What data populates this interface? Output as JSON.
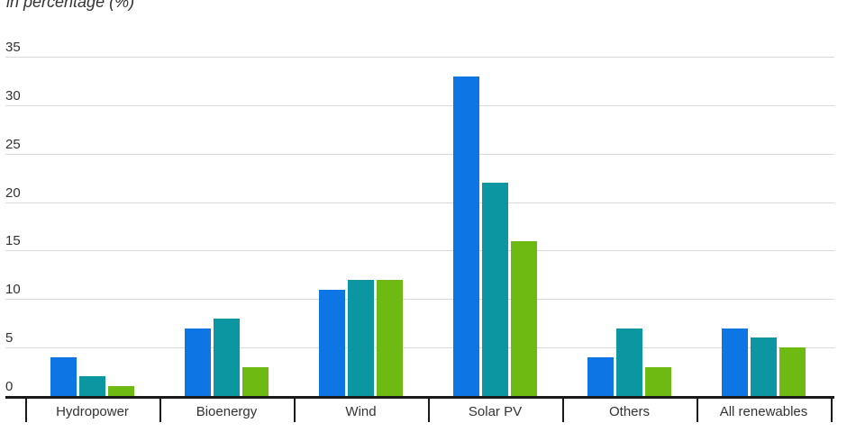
{
  "chart_data": {
    "type": "bar",
    "subtitle": "in percentage (%)",
    "categories": [
      "Hydropower",
      "Bioenergy",
      "Wind",
      "Solar PV",
      "Others",
      "All renewables"
    ],
    "series": [
      {
        "name": "series-blue",
        "color": "#0e76e4",
        "values": [
          4,
          7,
          11,
          33,
          4,
          7
        ]
      },
      {
        "name": "series-teal",
        "color": "#0b96a2",
        "values": [
          2,
          8,
          12,
          22,
          7,
          6
        ]
      },
      {
        "name": "series-green",
        "color": "#6fba12",
        "values": [
          1,
          3,
          12,
          16,
          3,
          5
        ]
      }
    ],
    "ylabel": "percentage (%)",
    "xlabel": "",
    "ylim": [
      0,
      35
    ],
    "yticks": [
      0,
      5,
      10,
      15,
      20,
      25,
      30,
      35
    ],
    "grid": true,
    "legend_position": "none",
    "colors": {
      "grid": "#d9d9d9",
      "axis": "#1a1a1a",
      "text": "#333333"
    }
  }
}
